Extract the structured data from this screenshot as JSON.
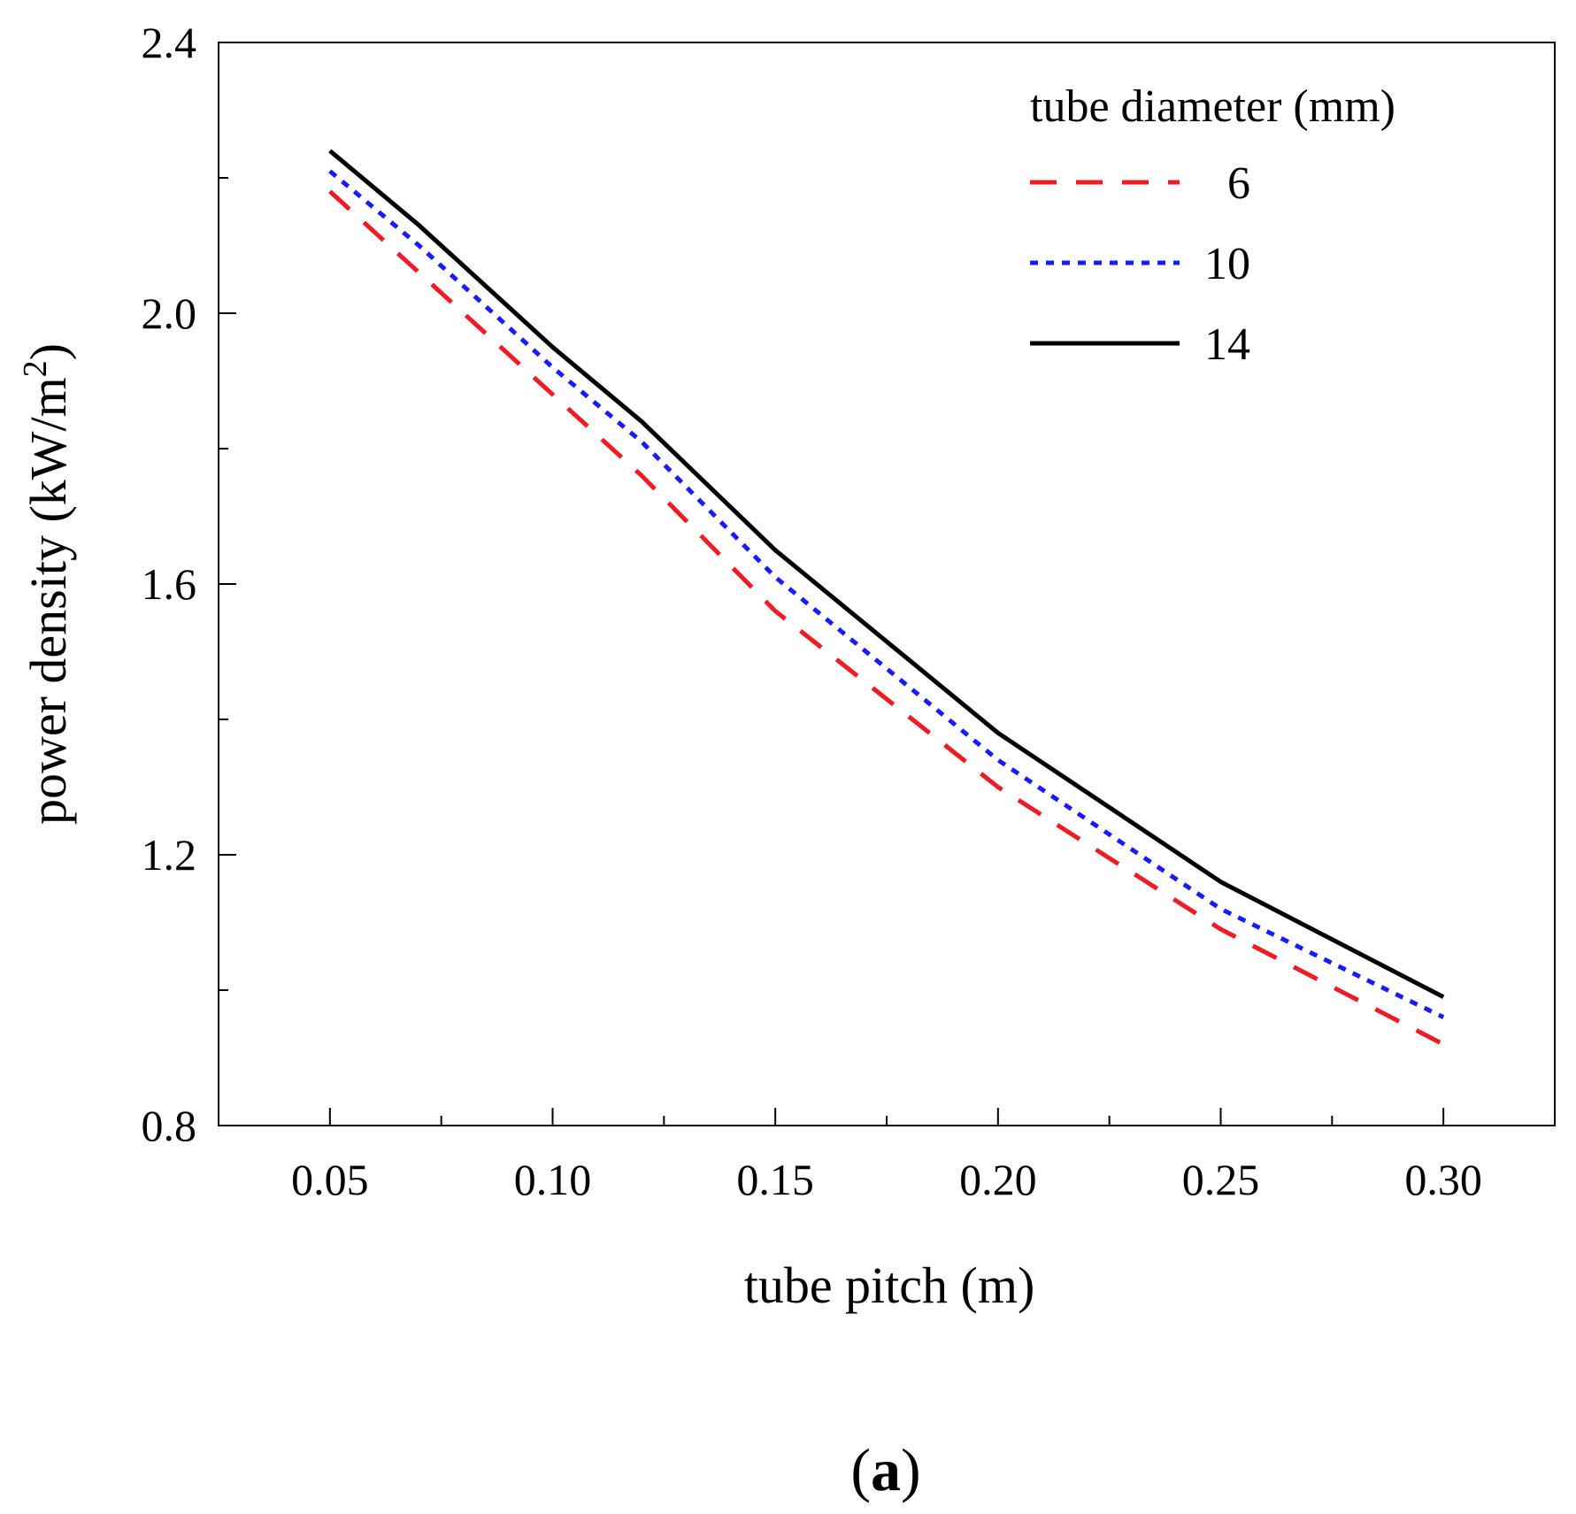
{
  "chart_data": {
    "type": "line",
    "title": "",
    "xlabel": "tube pitch (m)",
    "ylabel_main": "power density (kW/m",
    "ylabel_sup": "2",
    "ylabel_close": ")",
    "xlim": [
      0.025,
      0.325
    ],
    "ylim": [
      0.8,
      2.4
    ],
    "x_ticks": [
      0.05,
      0.1,
      0.15,
      0.2,
      0.25,
      0.3
    ],
    "x_tick_labels": [
      "0.05",
      "0.10",
      "0.15",
      "0.20",
      "0.25",
      "0.30"
    ],
    "x_minor_ticks": [
      0.075,
      0.125,
      0.175,
      0.225,
      0.275
    ],
    "y_ticks": [
      0.8,
      1.2,
      1.6,
      2.0,
      2.4
    ],
    "y_tick_labels": [
      "0.8",
      "1.2",
      "1.6",
      "2.0",
      "2.4"
    ],
    "y_minor_ticks": [
      1.0,
      1.4,
      1.8,
      2.2
    ],
    "legend_title": "tube diameter (mm)",
    "legend_position": "top-right",
    "x": [
      0.05,
      0.07,
      0.09,
      0.1,
      0.12,
      0.15,
      0.2,
      0.25,
      0.3
    ],
    "series": [
      {
        "name": "6",
        "color": "#ee1c25",
        "style": "dashed",
        "values": [
          2.18,
          2.06,
          1.94,
          1.88,
          1.76,
          1.56,
          1.3,
          1.09,
          0.92
        ]
      },
      {
        "name": "10",
        "color": "#1a1aff",
        "style": "dotted",
        "values": [
          2.21,
          2.1,
          1.98,
          1.92,
          1.81,
          1.61,
          1.34,
          1.12,
          0.96
        ]
      },
      {
        "name": "14",
        "color": "#000000",
        "style": "solid",
        "values": [
          2.24,
          2.13,
          2.01,
          1.95,
          1.84,
          1.65,
          1.38,
          1.16,
          0.99
        ]
      }
    ],
    "panel_label_open": "(",
    "panel_label_letter": "a",
    "panel_label_close": ")"
  }
}
